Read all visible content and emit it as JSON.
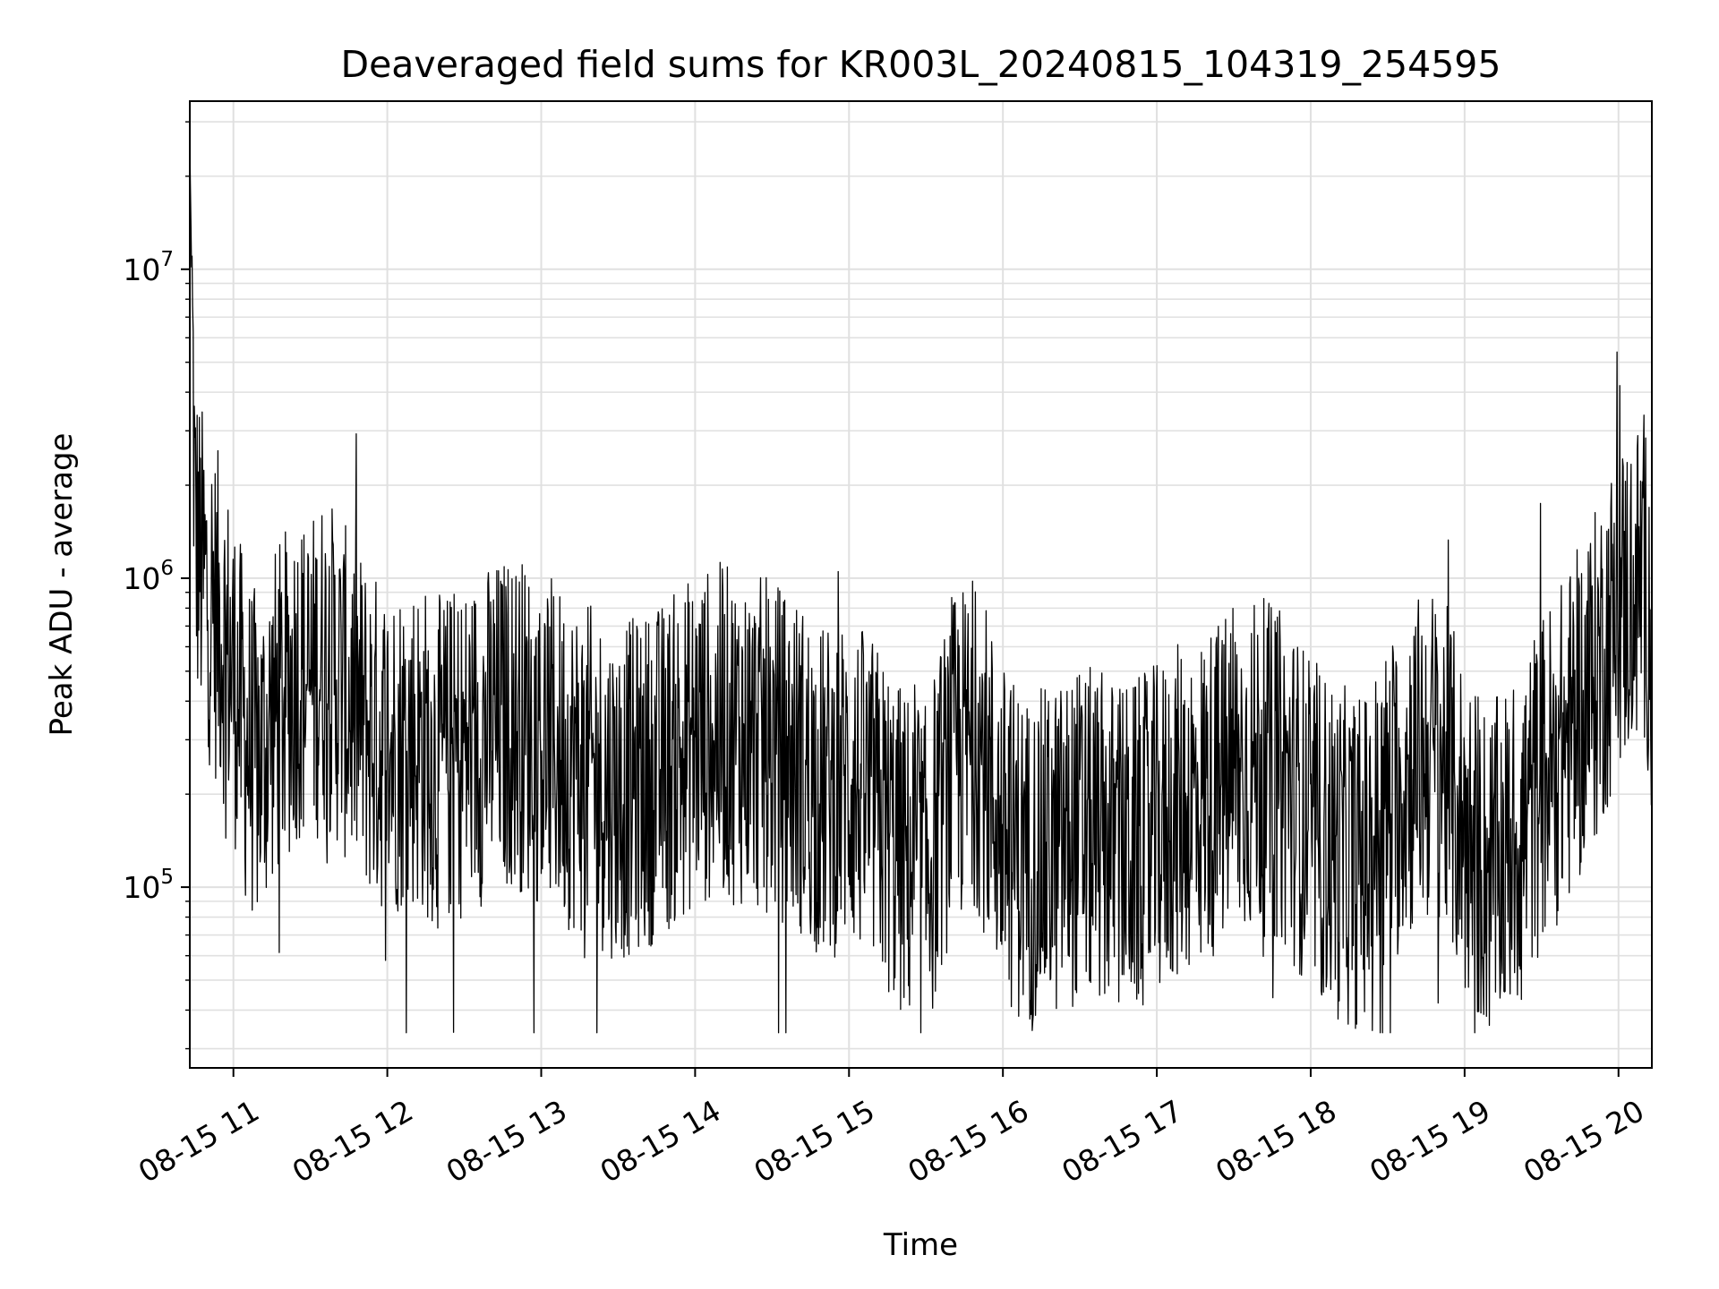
{
  "chart_data": {
    "type": "line",
    "title": "Deaveraged field sums for KR003L_20240815_104319_254595",
    "xlabel": "Time",
    "ylabel": "Peak ADU - average",
    "yscale": "log",
    "ylim": [
      26000,
      35000000
    ],
    "xlim": [
      "08-15 10:43",
      "08-15 20:13"
    ],
    "x_ticks": [
      "08-15 11",
      "08-15 12",
      "08-15 13",
      "08-15 14",
      "08-15 15",
      "08-15 16",
      "08-15 17",
      "08-15 18",
      "08-15 19",
      "08-15 20"
    ],
    "y_ticks": [
      {
        "base": "10",
        "exp": "5",
        "value": 100000
      },
      {
        "base": "10",
        "exp": "6",
        "value": 1000000
      },
      {
        "base": "10",
        "exp": "7",
        "value": 10000000
      }
    ],
    "grid": true,
    "line_color": "#000000",
    "series": [
      {
        "x": [
          "08-15 10:43",
          "08-15 10:45",
          "08-15 10:47",
          "08-15 10:50",
          "08-15 10:55",
          "08-15 11:00",
          "08-15 11:05",
          "08-15 11:10",
          "08-15 11:15",
          "08-15 11:20",
          "08-15 11:25",
          "08-15 11:30",
          "08-15 11:35",
          "08-15 11:40",
          "08-15 11:45",
          "08-15 11:50",
          "08-15 11:55",
          "08-15 12:00",
          "08-15 12:10",
          "08-15 12:20",
          "08-15 12:30",
          "08-15 12:40",
          "08-15 12:50",
          "08-15 13:00",
          "08-15 13:10",
          "08-15 13:20",
          "08-15 13:30",
          "08-15 13:40",
          "08-15 13:50",
          "08-15 14:00",
          "08-15 14:10",
          "08-15 14:20",
          "08-15 14:30",
          "08-15 14:40",
          "08-15 14:50",
          "08-15 15:00",
          "08-15 15:10",
          "08-15 15:20",
          "08-15 15:30",
          "08-15 15:40",
          "08-15 15:50",
          "08-15 16:00",
          "08-15 16:10",
          "08-15 16:20",
          "08-15 16:30",
          "08-15 16:40",
          "08-15 16:50",
          "08-15 17:00",
          "08-15 17:10",
          "08-15 17:20",
          "08-15 17:30",
          "08-15 17:40",
          "08-15 17:50",
          "08-15 18:00",
          "08-15 18:10",
          "08-15 18:20",
          "08-15 18:30",
          "08-15 18:40",
          "08-15 18:50",
          "08-15 19:00",
          "08-15 19:10",
          "08-15 19:20",
          "08-15 19:30",
          "08-15 19:40",
          "08-15 19:50",
          "08-15 20:00",
          "08-15 20:05",
          "08-15 20:10",
          "08-15 20:13"
        ],
        "y": [
          26000000,
          1500000,
          1100000,
          900000,
          700000,
          500000,
          300000,
          250000,
          350000,
          400000,
          500000,
          450000,
          550000,
          480000,
          400000,
          350000,
          300000,
          280000,
          300000,
          250000,
          280000,
          320000,
          350000,
          300000,
          260000,
          230000,
          200000,
          220000,
          250000,
          300000,
          320000,
          300000,
          280000,
          250000,
          200000,
          220000,
          180000,
          130000,
          110000,
          250000,
          300000,
          150000,
          120000,
          130000,
          150000,
          140000,
          130000,
          150000,
          180000,
          200000,
          230000,
          250000,
          220000,
          160000,
          130000,
          120000,
          180000,
          250000,
          280000,
          150000,
          110000,
          140000,
          220000,
          300000,
          450000,
          800000,
          900000,
          1000000,
          700000
        ]
      }
    ]
  }
}
